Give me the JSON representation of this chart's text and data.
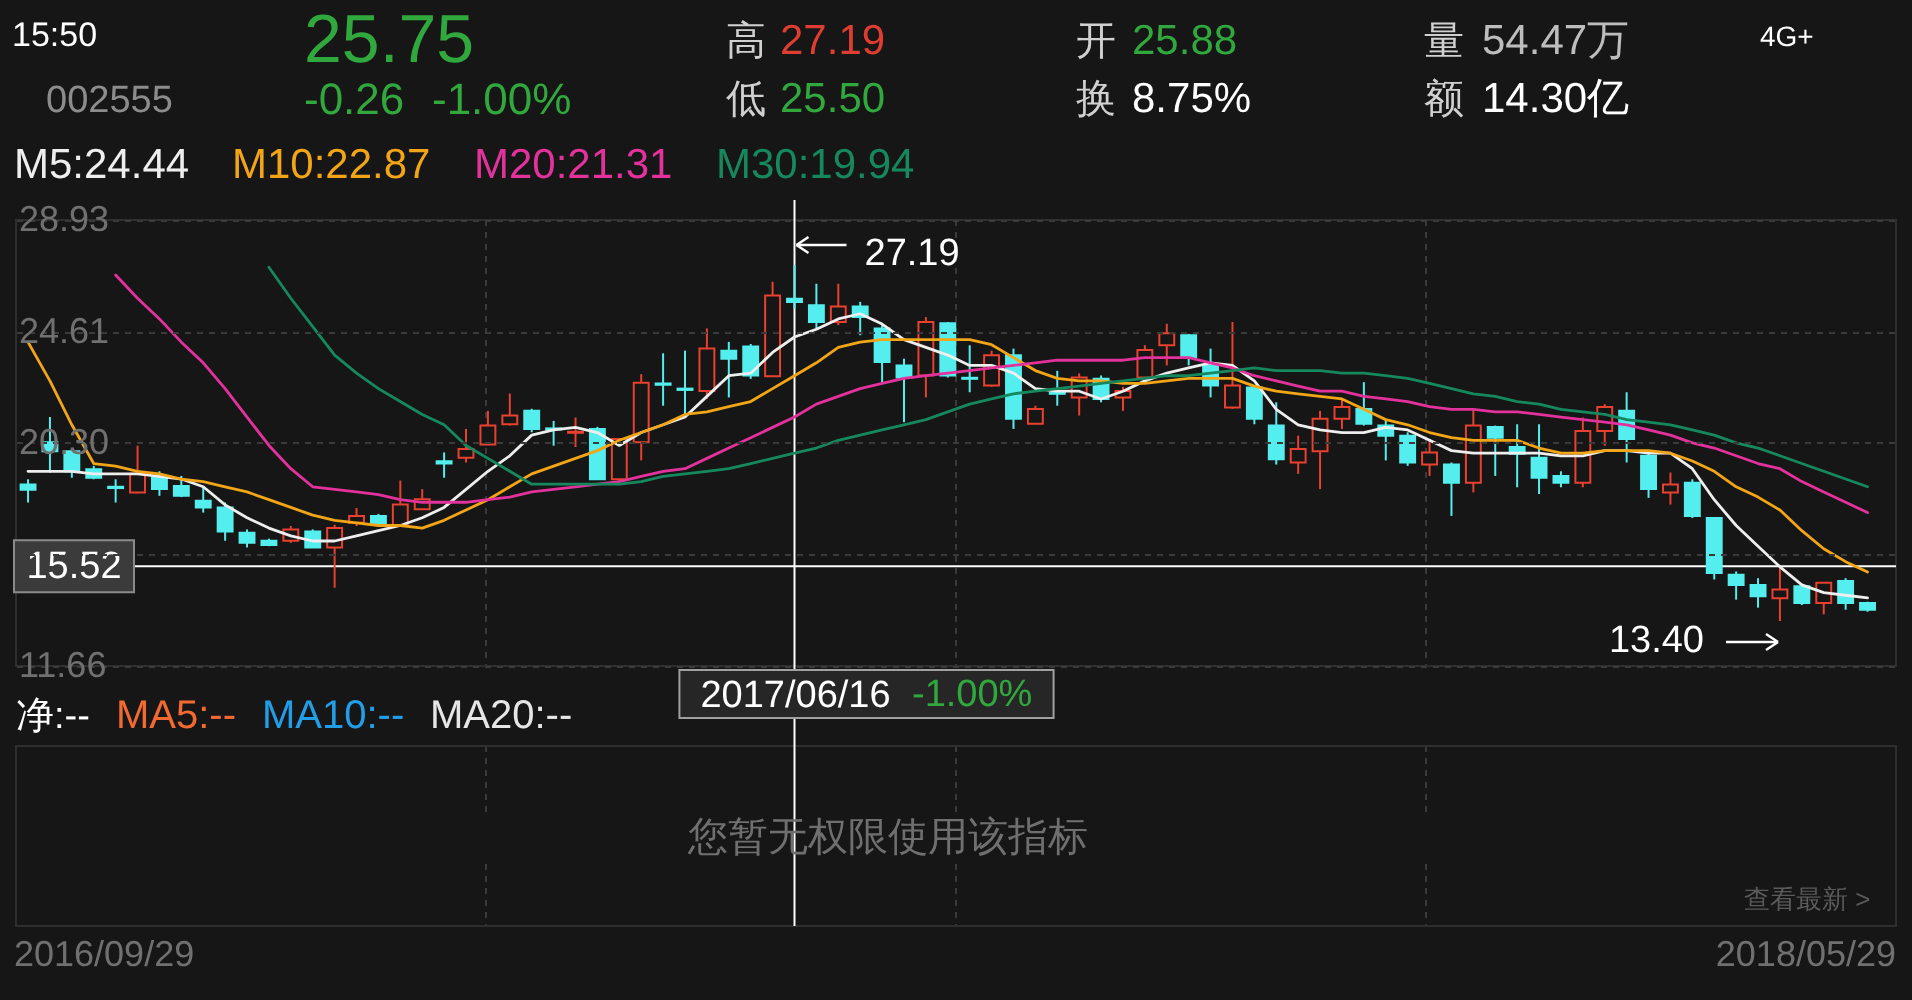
{
  "chart_data": {
    "type": "candlestick",
    "categories": [
      null,
      null,
      null,
      null,
      null,
      null,
      null,
      null,
      null,
      null,
      null,
      null,
      null,
      null,
      null,
      null,
      null,
      null,
      null,
      null,
      null,
      null,
      null,
      null,
      null,
      null,
      null,
      null,
      null,
      null,
      null,
      null,
      null,
      null,
      null,
      "2017/06/16",
      null,
      null,
      null,
      null,
      null,
      null,
      null,
      null,
      null,
      null,
      null,
      null,
      null,
      null,
      null,
      null,
      null,
      null,
      null,
      null,
      null,
      null,
      null,
      null,
      null,
      null,
      null,
      null,
      null,
      null,
      null,
      null,
      null,
      null,
      null,
      null,
      null,
      null,
      null,
      null,
      null,
      null,
      null,
      null,
      null,
      null,
      null,
      null,
      null
    ],
    "ohlc": [
      [
        18.69,
        18.89,
        17.99,
        18.48
      ],
      [
        20.32,
        21.3,
        19.15,
        19.98
      ],
      [
        19.98,
        20.05,
        18.95,
        19.2
      ],
      [
        19.28,
        19.41,
        18.89,
        18.95
      ],
      [
        18.6,
        18.89,
        17.99,
        18.55
      ],
      [
        18.38,
        20.19,
        18.35,
        19.1
      ],
      [
        18.95,
        19.2,
        18.25,
        18.51
      ],
      [
        18.63,
        19.02,
        18.2,
        18.25
      ],
      [
        18.06,
        18.63,
        17.6,
        17.8
      ],
      [
        17.8,
        17.99,
        16.51,
        16.87
      ],
      [
        16.82,
        16.95,
        16.25,
        16.43
      ],
      [
        16.51,
        16.59,
        16.3,
        16.35
      ],
      [
        16.51,
        17.08,
        16.43,
        16.95
      ],
      [
        16.87,
        16.95,
        16.25,
        16.25
      ],
      [
        16.25,
        17.13,
        14.69,
        17.0
      ],
      [
        17.21,
        17.78,
        17.08,
        17.47
      ],
      [
        17.47,
        17.55,
        17.08,
        17.13
      ],
      [
        17.08,
        18.84,
        17.08,
        17.91
      ],
      [
        17.73,
        18.51,
        17.73,
        18.12
      ],
      [
        19.59,
        19.93,
        18.95,
        19.5
      ],
      [
        19.72,
        20.84,
        19.54,
        20.06
      ],
      [
        20.24,
        21.54,
        20.24,
        20.97
      ],
      [
        21.02,
        22.21,
        20.97,
        21.36
      ],
      [
        21.54,
        21.62,
        20.71,
        20.84
      ],
      [
        20.86,
        21.15,
        20.19,
        20.82
      ],
      [
        20.69,
        21.28,
        20.14,
        20.73
      ],
      [
        20.84,
        20.92,
        18.89,
        18.89
      ],
      [
        18.89,
        20.45,
        18.76,
        20.45
      ],
      [
        20.32,
        22.96,
        19.62,
        22.63
      ],
      [
        22.6,
        23.77,
        21.74,
        22.55
      ],
      [
        22.4,
        23.87,
        21.36,
        22.35
      ],
      [
        22.31,
        24.73,
        22.0,
        23.95
      ],
      [
        23.87,
        24.21,
        22.06,
        23.56
      ],
      [
        24.03,
        24.13,
        22.78,
        22.91
      ],
      [
        22.88,
        26.54,
        22.88,
        26.01
      ],
      [
        25.88,
        27.19,
        25.5,
        25.75
      ],
      [
        25.63,
        26.46,
        24.73,
        24.98
      ],
      [
        24.98,
        26.46,
        24.86,
        25.58
      ],
      [
        25.58,
        25.76,
        24.47,
        25.17
      ],
      [
        24.73,
        24.86,
        22.65,
        23.43
      ],
      [
        23.3,
        23.56,
        21.1,
        22.83
      ],
      [
        22.91,
        25.17,
        22.06,
        24.98
      ],
      [
        24.93,
        24.98,
        22.83,
        22.91
      ],
      [
        22.82,
        24.08,
        22.26,
        22.78
      ],
      [
        22.52,
        23.87,
        22.47,
        23.69
      ],
      [
        23.69,
        23.95,
        20.84,
        21.23
      ],
      [
        21.04,
        21.74,
        21.04,
        21.61
      ],
      [
        22.24,
        23.09,
        21.74,
        22.2
      ],
      [
        22.06,
        22.99,
        21.36,
        22.83
      ],
      [
        22.78,
        22.91,
        21.87,
        22.0
      ],
      [
        22.06,
        22.47,
        21.54,
        22.31
      ],
      [
        22.83,
        24.08,
        22.83,
        23.9
      ],
      [
        24.08,
        24.91,
        23.3,
        24.54
      ],
      [
        24.47,
        24.52,
        23.3,
        23.61
      ],
      [
        23.3,
        23.95,
        22.06,
        22.52
      ],
      [
        21.67,
        24.98,
        21.62,
        22.52
      ],
      [
        22.44,
        22.52,
        21.02,
        21.23
      ],
      [
        20.97,
        21.87,
        19.46,
        19.67
      ],
      [
        19.54,
        20.58,
        19.1,
        20.06
      ],
      [
        19.98,
        21.54,
        18.51,
        21.23
      ],
      [
        21.23,
        22.0,
        20.84,
        21.69
      ],
      [
        21.61,
        22.65,
        20.97,
        21.04
      ],
      [
        20.97,
        21.23,
        19.62,
        20.58
      ],
      [
        20.58,
        20.71,
        19.41,
        19.54
      ],
      [
        19.46,
        20.45,
        19.02,
        19.93
      ],
      [
        19.46,
        19.54,
        17.47,
        18.76
      ],
      [
        18.76,
        21.62,
        18.38,
        20.97
      ],
      [
        20.91,
        20.97,
        19.02,
        20.5
      ],
      [
        20.14,
        21.02,
        18.58,
        19.88
      ],
      [
        19.72,
        21.02,
        18.32,
        18.95
      ],
      [
        19.02,
        19.2,
        18.58,
        18.76
      ],
      [
        18.76,
        21.28,
        18.58,
        20.76
      ],
      [
        20.76,
        21.8,
        20.19,
        21.69
      ],
      [
        21.54,
        22.26,
        19.54,
        20.45
      ],
      [
        19.8,
        19.93,
        18.17,
        18.51
      ],
      [
        18.38,
        19.15,
        17.91,
        18.69
      ],
      [
        18.76,
        18.89,
        17.39,
        17.47
      ],
      [
        17.39,
        17.39,
        15.01,
        15.26
      ],
      [
        15.19,
        15.32,
        14.23,
        14.8
      ],
      [
        14.8,
        15.06,
        13.92,
        14.36
      ],
      [
        14.28,
        15.52,
        13.4,
        14.62
      ],
      [
        14.75,
        14.8,
        14.02,
        14.1
      ],
      [
        14.1,
        14.88,
        13.66,
        14.88
      ],
      [
        14.95,
        15.06,
        13.84,
        14.1
      ],
      [
        14.1,
        14.15,
        13.76,
        13.84
      ]
    ],
    "colors": [
      "#55eeee",
      "#55eeee",
      "#55eeee",
      "#55eeee",
      "#55eeee",
      "#e8412f",
      "#55eeee",
      "#55eeee",
      "#55eeee",
      "#55eeee",
      "#55eeee",
      "#55eeee",
      "#e8412f",
      "#55eeee",
      "#e8412f",
      "#e8412f",
      "#55eeee",
      "#e8412f",
      "#e8412f",
      "#55eeee",
      "#e8412f",
      "#e8412f",
      "#e8412f",
      "#55eeee",
      "#55eeee",
      "#e8412f",
      "#55eeee",
      "#e8412f",
      "#e8412f",
      "#55eeee",
      "#55eeee",
      "#e8412f",
      "#55eeee",
      "#55eeee",
      "#e8412f",
      "#55eeee",
      "#55eeee",
      "#e8412f",
      "#55eeee",
      "#55eeee",
      "#55eeee",
      "#e8412f",
      "#55eeee",
      "#55eeee",
      "#e8412f",
      "#55eeee",
      "#e8412f",
      "#55eeee",
      "#e8412f",
      "#55eeee",
      "#e8412f",
      "#e8412f",
      "#e8412f",
      "#55eeee",
      "#55eeee",
      "#e8412f",
      "#55eeee",
      "#55eeee",
      "#e8412f",
      "#e8412f",
      "#e8412f",
      "#55eeee",
      "#55eeee",
      "#55eeee",
      "#e8412f",
      "#55eeee",
      "#e8412f",
      "#55eeee",
      "#55eeee",
      "#55eeee",
      "#55eeee",
      "#e8412f",
      "#e8412f",
      "#55eeee",
      "#55eeee",
      "#e8412f",
      "#55eeee",
      "#55eeee",
      "#55eeee",
      "#55eeee",
      "#e8412f",
      "#55eeee",
      "#e8412f",
      "#55eeee",
      "#55eeee"
    ],
    "series": [
      {
        "name": "M5:24.44",
        "type": "line",
        "color": "#eeeeee",
        "values": [
          19.2,
          19.2,
          19.2,
          19.1,
          19.1,
          19.1,
          19.0,
          18.9,
          18.6,
          17.9,
          17.4,
          17.0,
          16.7,
          16.5,
          16.5,
          16.7,
          16.9,
          17.1,
          17.4,
          17.8,
          18.5,
          19.2,
          19.8,
          20.6,
          20.8,
          20.9,
          20.7,
          20.2,
          20.7,
          21.0,
          21.3,
          22.1,
          22.9,
          23.0,
          23.8,
          24.4,
          24.7,
          25.1,
          25.3,
          24.9,
          24.3,
          24.0,
          23.7,
          23.3,
          23.3,
          23.0,
          22.4,
          22.3,
          22.3,
          22.0,
          22.3,
          22.7,
          23.0,
          23.2,
          23.4,
          23.3,
          22.7,
          21.6,
          21.0,
          20.8,
          20.7,
          20.7,
          20.9,
          20.8,
          20.4,
          20.0,
          19.9,
          19.9,
          19.9,
          19.9,
          19.8,
          19.8,
          20.0,
          20.0,
          19.9,
          19.9,
          19.3,
          18.1,
          17.1,
          16.3,
          15.5,
          14.8,
          14.5,
          14.4,
          14.3
        ]
      },
      {
        "name": "M10:22.87",
        "type": "line",
        "color": "#f2a516",
        "values": [
          24.2,
          22.7,
          21.0,
          19.5,
          19.4,
          19.2,
          19.1,
          18.9,
          18.8,
          18.6,
          18.4,
          18.1,
          17.8,
          17.5,
          17.3,
          17.2,
          17.1,
          17.1,
          17.0,
          17.3,
          17.7,
          18.1,
          18.6,
          19.1,
          19.4,
          19.7,
          20.0,
          20.4,
          20.7,
          21.0,
          21.4,
          21.5,
          21.7,
          21.9,
          22.4,
          22.9,
          23.4,
          24.0,
          24.2,
          24.3,
          24.3,
          24.3,
          24.3,
          24.3,
          24.1,
          23.6,
          23.1,
          22.8,
          22.7,
          22.7,
          22.6,
          22.6,
          22.7,
          22.8,
          22.8,
          22.8,
          22.5,
          22.3,
          22.2,
          22.1,
          22.0,
          21.6,
          21.2,
          21.0,
          20.7,
          20.5,
          20.4,
          20.4,
          20.4,
          20.1,
          19.9,
          19.9,
          20.0,
          20.0,
          20.0,
          19.9,
          19.6,
          19.2,
          18.6,
          18.2,
          17.7,
          16.9,
          16.2,
          15.7,
          15.3
        ]
      },
      {
        "name": "M20:21.31",
        "type": "line",
        "color": "#e3329c",
        "values": [
          null,
          null,
          null,
          null,
          26.8,
          25.9,
          25.1,
          24.2,
          23.4,
          22.4,
          21.3,
          20.2,
          19.3,
          18.6,
          18.5,
          18.4,
          18.3,
          18.1,
          18.0,
          18.0,
          18.0,
          18.1,
          18.2,
          18.4,
          18.5,
          18.6,
          18.7,
          18.8,
          19.0,
          19.2,
          19.3,
          19.7,
          20.1,
          20.5,
          20.9,
          21.3,
          21.8,
          22.1,
          22.4,
          22.6,
          22.8,
          22.9,
          23.0,
          23.1,
          23.2,
          23.3,
          23.4,
          23.5,
          23.5,
          23.5,
          23.5,
          23.6,
          23.6,
          23.6,
          23.4,
          23.2,
          22.9,
          22.7,
          22.5,
          22.3,
          22.3,
          22.1,
          22.0,
          21.9,
          21.7,
          21.6,
          21.6,
          21.5,
          21.5,
          21.4,
          21.3,
          21.2,
          21.1,
          21.0,
          20.8,
          20.6,
          20.3,
          20.1,
          19.8,
          19.5,
          19.3,
          18.8,
          18.4,
          18.0,
          17.6
        ]
      },
      {
        "name": "M30:19.94",
        "type": "line",
        "color": "#16885e",
        "values": [
          null,
          null,
          null,
          null,
          null,
          null,
          null,
          null,
          null,
          null,
          null,
          27.1,
          25.9,
          24.8,
          23.7,
          23.0,
          22.4,
          21.9,
          21.4,
          21.0,
          20.2,
          19.7,
          19.2,
          18.7,
          18.7,
          18.7,
          18.7,
          18.7,
          18.8,
          19.0,
          19.1,
          19.2,
          19.3,
          19.5,
          19.7,
          19.9,
          20.1,
          20.4,
          20.6,
          20.8,
          21.0,
          21.2,
          21.5,
          21.8,
          22.0,
          22.2,
          22.3,
          22.4,
          22.5,
          22.6,
          22.7,
          22.8,
          22.9,
          22.9,
          23.0,
          23.1,
          23.2,
          23.1,
          23.1,
          23.1,
          23.0,
          23.0,
          22.9,
          22.8,
          22.6,
          22.4,
          22.2,
          22.1,
          21.9,
          21.8,
          21.6,
          21.5,
          21.4,
          21.2,
          21.1,
          21.0,
          20.8,
          20.6,
          20.3,
          20.1,
          19.8,
          19.5,
          19.2,
          18.9,
          18.6
        ]
      }
    ],
    "ylim": [
      11.66,
      28.93
    ],
    "yticks": [
      11.66,
      {
        "value": 15.98,
        "label": null
      },
      {
        "value": 20.3,
        "label": "20.30"
      },
      24.61,
      28.93
    ],
    "grid": true,
    "legend": "top left",
    "ref_lines": [
      {
        "axis": "y",
        "value": 15.52,
        "label": "15.52",
        "color": "#ffffff"
      },
      {
        "axis": "x",
        "value": "2017/06/16",
        "color": "#ffffff"
      }
    ],
    "annotations": [
      "15:50",
      "002555",
      "25.75",
      "-0.26",
      "-1.00%",
      "高",
      "27.19",
      "低",
      "25.50",
      "开",
      "25.88",
      "换",
      "8.75%",
      "量",
      "54.47万",
      "额",
      "14.30亿",
      "4G+",
      "13.40",
      "-1.00%",
      "净:--",
      "MA5:--",
      "MA10:--",
      "MA20:--",
      "您暂无权限使用该指标",
      "查看最新 >",
      "2016/09/29",
      "2018/05/29",
      {
        "text": "27.19",
        "x": "2017/06/16",
        "y": 27.19
      }
    ]
  }
}
